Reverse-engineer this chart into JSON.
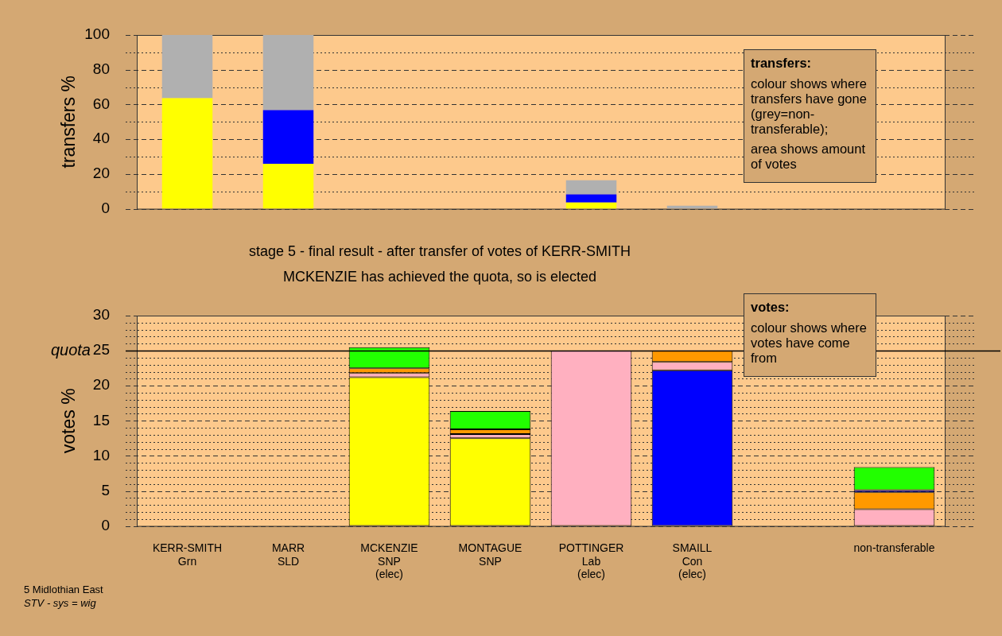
{
  "chart_data": [
    {
      "type": "bar",
      "stacked": true,
      "ylabel": "transfers %",
      "tick_labels": "y",
      "grid": true,
      "legend": false,
      "categories": [
        null,
        null,
        null,
        null,
        null,
        null,
        null,
        null
      ],
      "ylim": [
        0,
        100
      ],
      "yticks": [
        0,
        {
          "value": 10,
          "label": null
        },
        20,
        {
          "value": 30,
          "label": null
        },
        40,
        {
          "value": 50,
          "label": null
        },
        60,
        {
          "value": 70,
          "label": null
        },
        80,
        {
          "value": 90,
          "label": null
        },
        100
      ],
      "series": [
        {
          "color": "#ffff00",
          "values": [
            63.6,
            25.9,
            null,
            null,
            3.6,
            null,
            null,
            null
          ]
        },
        {
          "color": "#0000ff",
          "values": [
            null,
            30.9,
            null,
            null,
            4.7,
            null,
            null,
            null
          ]
        },
        {
          "color": "#b0b0b0",
          "values": [
            36.4,
            43.2,
            null,
            null,
            8.1,
            1.8,
            null,
            null
          ]
        }
      ],
      "annotations": [
        "transfers:\ncolour shows where transfers have gone (grey=non-transferable);\narea shows amount of votes"
      ]
    },
    {
      "type": "bar",
      "stacked": true,
      "title": "stage 5 - final result - after transfer of votes of KERR-SMITH",
      "subtitle": "MCKENZIE has achieved the quota, so is elected",
      "ylabel": "votes %",
      "grid": true,
      "legend": false,
      "categories": [
        "KERR-SMITH\nGrn",
        "MARR\nSLD",
        "MCKENZIE\nSNP\n(elec)",
        "MONTAGUE\nSNP",
        "POTTINGER\nLab\n(elec)",
        "SMAILL\nCon\n(elec)",
        null,
        "non-transferable"
      ],
      "ylim": [
        0,
        30
      ],
      "yticks": [
        0,
        {
          "value": 1,
          "label": null
        },
        {
          "value": 2,
          "label": null
        },
        {
          "value": 3,
          "label": null
        },
        {
          "value": 4,
          "label": null
        },
        5,
        {
          "value": 6,
          "label": null
        },
        {
          "value": 7,
          "label": null
        },
        {
          "value": 8,
          "label": null
        },
        {
          "value": 9,
          "label": null
        },
        10,
        {
          "value": 11,
          "label": null
        },
        {
          "value": 12,
          "label": null
        },
        {
          "value": 13,
          "label": null
        },
        {
          "value": 14,
          "label": null
        },
        15,
        {
          "value": 16,
          "label": null
        },
        {
          "value": 17,
          "label": null
        },
        {
          "value": 18,
          "label": null
        },
        {
          "value": 19,
          "label": null
        },
        20,
        {
          "value": 21,
          "label": null
        },
        {
          "value": 22,
          "label": null
        },
        {
          "value": 23,
          "label": null
        },
        {
          "value": 24,
          "label": null
        },
        25,
        {
          "value": 26,
          "label": null
        },
        {
          "value": 27,
          "label": null
        },
        {
          "value": 28,
          "label": null
        },
        {
          "value": 29,
          "label": null
        },
        30
      ],
      "series": [
        {
          "color": "#ffff00",
          "values": [
            0,
            0,
            21.2,
            12.5,
            null,
            null,
            null,
            null
          ]
        },
        {
          "color": "#0000ff",
          "values": [
            null,
            null,
            null,
            null,
            null,
            22.2,
            null,
            null
          ]
        },
        {
          "color": "#ffb0c0",
          "values": [
            null,
            null,
            0.6,
            0.6,
            25.0,
            1.2,
            null,
            2.4
          ]
        },
        {
          "color": "#ff9900",
          "values": [
            null,
            null,
            0.7,
            0.7,
            null,
            1.6,
            null,
            2.4
          ]
        },
        {
          "color": "#0000ff",
          "values": [
            null,
            null,
            null,
            null,
            null,
            null,
            null,
            0.3
          ]
        },
        {
          "color": "#22ff00",
          "values": [
            null,
            null,
            3.0,
            2.6,
            null,
            null,
            null,
            3.3
          ]
        }
      ],
      "ref_lines": [
        {
          "axis": "y",
          "value": 25,
          "label": "quota",
          "color": "#000000",
          "line_style": "solid"
        }
      ],
      "annotations": [
        "votes:\ncolour shows where votes have come from",
        "5 Midlothian East\nSTV - sys = wig"
      ]
    }
  ]
}
